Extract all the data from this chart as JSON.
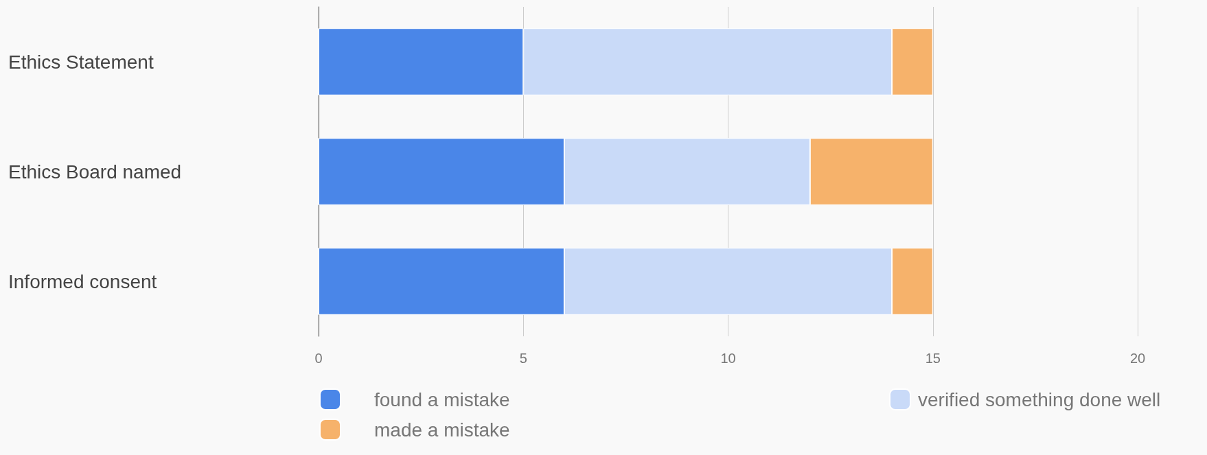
{
  "chart_data": {
    "type": "bar",
    "orientation": "horizontal",
    "stacked": true,
    "categories": [
      "Ethics Statement",
      "Ethics Board named",
      "Informed consent"
    ],
    "series": [
      {
        "name": "found a mistake",
        "color": "#4a86e8",
        "values": [
          5,
          6,
          6
        ]
      },
      {
        "name": "verified something done well",
        "color": "#c9daf8",
        "values": [
          9,
          6,
          8
        ]
      },
      {
        "name": "made a mistake",
        "color": "#f6b26b",
        "values": [
          1,
          3,
          1
        ]
      }
    ],
    "xlim": [
      0,
      20
    ],
    "xticks": [
      0,
      5,
      10,
      15,
      20
    ],
    "grid": "x",
    "legend": "bottom"
  }
}
